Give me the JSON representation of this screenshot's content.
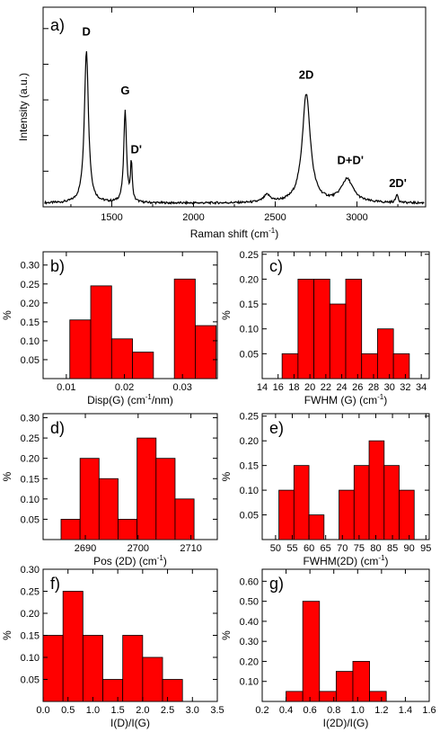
{
  "chart_data": [
    {
      "id": "a",
      "type": "line",
      "panel_label": "a)",
      "xlabel": "Raman shift (cm",
      "xlabel_sup": "-1",
      "xlabel_tail": ")",
      "ylabel": "Intensity (a.u.)",
      "xlim": [
        1080,
        3420
      ],
      "ylim": [
        0,
        1.12
      ],
      "xticks": [
        1500,
        2000,
        2500,
        3000
      ],
      "baseline": 0.02,
      "peaks": [
        {
          "label": "D",
          "x": 1345,
          "height": 0.86,
          "width": 15
        },
        {
          "label": "G",
          "x": 1582,
          "height": 0.52,
          "width": 10
        },
        {
          "label": "D'",
          "x": 1620,
          "height": 0.22,
          "width": 6
        },
        {
          "label": "2D",
          "x": 2690,
          "height": 0.61,
          "width": 30
        },
        {
          "label": "",
          "x": 2450,
          "height": 0.04,
          "width": 25
        },
        {
          "label": "D+D'",
          "x": 2940,
          "height": 0.13,
          "width": 45
        },
        {
          "label": "2D'",
          "x": 3245,
          "height": 0.05,
          "width": 8
        }
      ],
      "annotations": [
        {
          "text": "D",
          "x": 1345,
          "y": 0.96
        },
        {
          "text": "G",
          "x": 1582,
          "y": 0.63
        },
        {
          "text": "D'",
          "x": 1650,
          "y": 0.3
        },
        {
          "text": "2D",
          "x": 2690,
          "y": 0.72
        },
        {
          "text": "D+D'",
          "x": 2960,
          "y": 0.24
        },
        {
          "text": "2D'",
          "x": 3250,
          "y": 0.11
        }
      ]
    },
    {
      "id": "b",
      "type": "bar",
      "panel_label": "b)",
      "xlabel": "Disp(G) (cm",
      "xlabel_sup": "-1",
      "xlabel_tail": "/nm)",
      "ylabel": "%",
      "xlim": [
        0.006,
        0.036
      ],
      "ylim": [
        0,
        0.335
      ],
      "xticks": [
        "0.01",
        "0.02",
        "0.03"
      ],
      "xtick_values": [
        0.01,
        0.02,
        0.03
      ],
      "yticks": [
        "0.05",
        "0.10",
        "0.15",
        "0.20",
        "0.25",
        "0.30"
      ],
      "ytick_values": [
        0.05,
        0.1,
        0.15,
        0.2,
        0.25,
        0.3
      ],
      "bin_width": 0.0036,
      "bin_starts": [
        0.0106,
        0.0142,
        0.0178,
        0.0214,
        0.025,
        0.0286,
        0.0322
      ],
      "values": [
        0.155,
        0.245,
        0.105,
        0.07,
        0.0,
        0.263,
        0.14
      ]
    },
    {
      "id": "c",
      "type": "bar",
      "panel_label": "c)",
      "xlabel": "FWHM (G) (cm",
      "xlabel_sup": "-1",
      "xlabel_tail": ")",
      "ylabel": "%",
      "xlim": [
        14,
        35
      ],
      "ylim": [
        0,
        0.255
      ],
      "xticks": [
        "14",
        "16",
        "18",
        "20",
        "22",
        "24",
        "26",
        "28",
        "30",
        "32",
        "34"
      ],
      "xtick_values": [
        14,
        16,
        18,
        20,
        22,
        24,
        26,
        28,
        30,
        32,
        34
      ],
      "yticks": [
        "0.05",
        "0.10",
        "0.15",
        "0.20",
        "0.25"
      ],
      "ytick_values": [
        0.05,
        0.1,
        0.15,
        0.2,
        0.25
      ],
      "bin_width": 2,
      "bin_starts": [
        16.5,
        18.5,
        20.5,
        22.5,
        24.5,
        26.5,
        28.5,
        30.5
      ],
      "values": [
        0.05,
        0.2,
        0.2,
        0.15,
        0.2,
        0.05,
        0.1,
        0.05
      ]
    },
    {
      "id": "d",
      "type": "bar",
      "panel_label": "d)",
      "xlabel": "Pos (2D) (cm",
      "xlabel_sup": "-1",
      "xlabel_tail": ")",
      "ylabel": "%",
      "xlim": [
        2682,
        2715
      ],
      "ylim": [
        0,
        0.31
      ],
      "xticks": [
        "2690",
        "2700",
        "2710"
      ],
      "xtick_values": [
        2690,
        2700,
        2710
      ],
      "yticks": [
        "0.05",
        "0.10",
        "0.15",
        "0.20",
        "0.25",
        "0.30"
      ],
      "ytick_values": [
        0.05,
        0.1,
        0.15,
        0.2,
        0.25,
        0.3
      ],
      "bin_width": 3.6,
      "bin_starts": [
        2685.4,
        2689.0,
        2692.6,
        2696.2,
        2699.8,
        2703.4,
        2707.0,
        2710.6
      ],
      "values": [
        0.05,
        0.2,
        0.15,
        0.05,
        0.25,
        0.2,
        0.1,
        0.0
      ]
    },
    {
      "id": "e",
      "type": "bar",
      "panel_label": "e)",
      "xlabel": "FWHM(2D) (cm",
      "xlabel_sup": "-1",
      "xlabel_tail": ")",
      "ylabel": "%",
      "xlim": [
        46,
        96
      ],
      "ylim": [
        0,
        0.255
      ],
      "xticks": [
        "50",
        "55",
        "60",
        "65",
        "70",
        "75",
        "80",
        "85",
        "90",
        "95"
      ],
      "xtick_values": [
        50,
        55,
        60,
        65,
        70,
        75,
        80,
        85,
        90,
        95
      ],
      "yticks": [
        "0.05",
        "0.10",
        "0.15",
        "0.20",
        "0.25"
      ],
      "ytick_values": [
        0.05,
        0.1,
        0.15,
        0.2,
        0.25
      ],
      "bin_width": 4.5,
      "bin_starts": [
        51.0,
        55.5,
        60.0,
        64.5,
        69.0,
        73.5,
        78.0,
        82.5,
        87.0
      ],
      "values": [
        0.1,
        0.15,
        0.05,
        0.0,
        0.1,
        0.15,
        0.2,
        0.15,
        0.1
      ]
    },
    {
      "id": "f",
      "type": "bar",
      "panel_label": "f)",
      "xlabel": "I(D)/I(G)",
      "xlabel_sup": "",
      "xlabel_tail": "",
      "ylabel": "%",
      "xlim": [
        0,
        3.5
      ],
      "ylim": [
        0,
        0.3
      ],
      "xticks": [
        "0.0",
        "0.5",
        "1.0",
        "1.5",
        "2.0",
        "2.5",
        "3.0",
        "3.5"
      ],
      "xtick_values": [
        0,
        0.5,
        1,
        1.5,
        2,
        2.5,
        3,
        3.5
      ],
      "yticks": [
        "0.05",
        "0.10",
        "0.15",
        "0.20",
        "0.25",
        "0.30"
      ],
      "ytick_values": [
        0.05,
        0.1,
        0.15,
        0.2,
        0.25,
        0.3
      ],
      "bin_width": 0.4,
      "bin_starts": [
        0.0,
        0.4,
        0.8,
        1.2,
        1.6,
        2.0,
        2.4
      ],
      "values": [
        0.15,
        0.25,
        0.15,
        0.05,
        0.15,
        0.1,
        0.05
      ]
    },
    {
      "id": "g",
      "type": "bar",
      "panel_label": "g)",
      "xlabel": "I(2D)/I(G)",
      "xlabel_sup": "",
      "xlabel_tail": "",
      "ylabel": "%",
      "xlim": [
        0.2,
        1.6
      ],
      "ylim": [
        0,
        0.66
      ],
      "xticks": [
        "0.2",
        "0.4",
        "0.6",
        "0.8",
        "1.0",
        "1.2",
        "1.4",
        "1.6"
      ],
      "xtick_values": [
        0.2,
        0.4,
        0.6,
        0.8,
        1.0,
        1.2,
        1.4,
        1.6
      ],
      "yticks": [
        "0.10",
        "0.20",
        "0.30",
        "0.40",
        "0.50",
        "0.60"
      ],
      "ytick_values": [
        0.1,
        0.2,
        0.3,
        0.4,
        0.5,
        0.6
      ],
      "bin_width": 0.14,
      "bin_starts": [
        0.4,
        0.54,
        0.68,
        0.82,
        0.96,
        1.1,
        1.24
      ],
      "values": [
        0.05,
        0.5,
        0.05,
        0.15,
        0.2,
        0.05,
        0.0
      ]
    }
  ]
}
